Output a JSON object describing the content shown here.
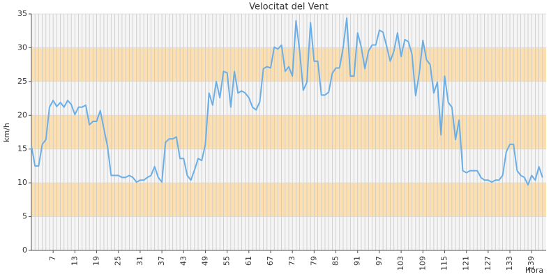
{
  "chart_data": {
    "type": "line",
    "title": "Velocitat del Vent",
    "x_label": "Hora",
    "y_label": "km/h",
    "x": [
      1,
      2,
      3,
      4,
      5,
      6,
      7,
      8,
      9,
      10,
      11,
      12,
      13,
      14,
      15,
      16,
      17,
      18,
      19,
      20,
      21,
      22,
      23,
      24,
      25,
      26,
      27,
      28,
      29,
      30,
      31,
      32,
      33,
      34,
      35,
      36,
      37,
      38,
      39,
      40,
      41,
      42,
      43,
      44,
      45,
      46,
      47,
      48,
      49,
      50,
      51,
      52,
      53,
      54,
      55,
      56,
      57,
      58,
      59,
      60,
      61,
      62,
      63,
      64,
      65,
      66,
      67,
      68,
      69,
      70,
      71,
      72,
      73,
      74,
      75,
      76,
      77,
      78,
      79,
      80,
      81,
      82,
      83,
      84,
      85,
      86,
      87,
      88,
      89,
      90,
      91,
      92,
      93,
      94,
      95,
      96,
      97,
      98,
      99,
      100,
      101,
      102,
      103,
      104,
      105,
      106,
      107,
      108,
      109,
      110,
      111,
      112,
      113,
      114,
      115,
      116,
      117,
      118,
      119,
      120,
      121,
      122,
      123,
      124,
      125,
      126,
      127,
      128,
      129,
      130,
      131,
      132,
      133,
      134,
      135,
      136,
      137,
      138,
      139,
      140,
      141,
      142
    ],
    "series": [
      {
        "name": "Velocitat",
        "color": "#6aaee8",
        "values": [
          15.5,
          12.5,
          12.5,
          15.7,
          16.4,
          21.2,
          22.2,
          21.3,
          21.9,
          21.2,
          22.2,
          21.6,
          20.1,
          21.2,
          21.2,
          21.5,
          18.6,
          19.1,
          19.1,
          20.7,
          18.0,
          15.4,
          11.1,
          11.1,
          11.1,
          10.8,
          10.8,
          11.1,
          10.8,
          10.1,
          10.4,
          10.4,
          10.8,
          11.1,
          12.4,
          10.8,
          10.1,
          16.0,
          16.5,
          16.5,
          16.8,
          13.6,
          13.6,
          11.1,
          10.4,
          11.9,
          13.6,
          13.3,
          15.7,
          23.3,
          21.5,
          25.0,
          22.6,
          26.5,
          26.3,
          21.2,
          26.5,
          23.3,
          23.6,
          23.3,
          22.6,
          21.2,
          20.8,
          22.0,
          26.9,
          27.2,
          27.0,
          30.1,
          29.8,
          30.4,
          26.5,
          27.2,
          25.8,
          34.0,
          29.5,
          23.7,
          24.9,
          33.7,
          28.0,
          28.0,
          23.0,
          23.0,
          23.4,
          26.2,
          27.0,
          27.0,
          30.0,
          34.4,
          25.8,
          25.8,
          32.2,
          30.1,
          26.9,
          29.5,
          30.4,
          30.4,
          32.6,
          32.3,
          30.2,
          28.0,
          29.5,
          32.2,
          28.7,
          31.2,
          30.9,
          29.0,
          22.9,
          26.2,
          31.1,
          28.2,
          27.5,
          23.3,
          24.9,
          17.1,
          25.8,
          21.9,
          21.2,
          16.4,
          19.3,
          11.8,
          11.5,
          11.8,
          11.8,
          11.8,
          10.8,
          10.4,
          10.4,
          10.1,
          10.4,
          10.4,
          11.1,
          14.6,
          15.7,
          15.7,
          11.8,
          11.1,
          10.8,
          9.7,
          11.1,
          10.4,
          12.4,
          10.8
        ]
      }
    ],
    "xlim": [
      1,
      143
    ],
    "ylim": [
      0,
      35
    ],
    "xticks": [
      7,
      13,
      19,
      25,
      31,
      37,
      43,
      49,
      55,
      61,
      67,
      73,
      79,
      85,
      91,
      97,
      103,
      109,
      115,
      121,
      127,
      133,
      139
    ],
    "yticks": [
      0,
      5,
      10,
      15,
      20,
      25,
      30,
      35
    ],
    "bands": [
      [
        5,
        10
      ],
      [
        15,
        20
      ],
      [
        25,
        30
      ]
    ],
    "band_color": "#fde0b2",
    "background": "#f5f5f5",
    "grid": true
  }
}
